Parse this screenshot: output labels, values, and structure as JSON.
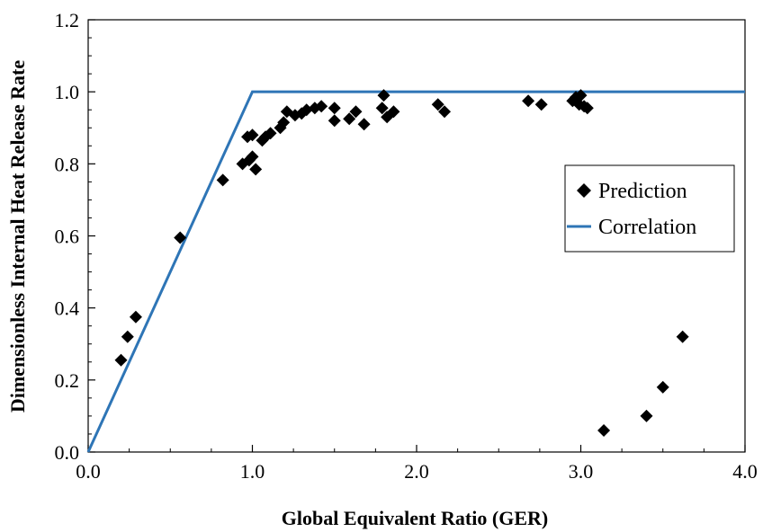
{
  "chart_data": {
    "type": "scatter",
    "title": "",
    "xlabel": "Global Equivalent Ratio (GER)",
    "ylabel": "Dimensionless Internal Heat Release Rate",
    "xlim": [
      0.0,
      4.0
    ],
    "ylim": [
      0.0,
      1.2
    ],
    "x_ticks": [
      "0.0",
      "1.0",
      "2.0",
      "3.0",
      "4.0"
    ],
    "y_ticks": [
      "0.0",
      "0.2",
      "0.4",
      "0.6",
      "0.8",
      "1.0",
      "1.2"
    ],
    "grid": false,
    "legend": {
      "position": "right",
      "entries": [
        "Prediction",
        "Correlation"
      ]
    },
    "colors": {
      "prediction": "#000000",
      "correlation": "#2e75b6"
    },
    "series": [
      {
        "name": "Prediction",
        "type": "scatter",
        "marker": "diamond",
        "x": [
          0.2,
          0.24,
          0.29,
          0.56,
          0.82,
          0.94,
          0.97,
          0.98,
          1.0,
          1.0,
          1.02,
          1.06,
          1.08,
          1.11,
          1.17,
          1.19,
          1.21,
          1.26,
          1.3,
          1.33,
          1.38,
          1.42,
          1.5,
          1.5,
          1.59,
          1.63,
          1.68,
          1.79,
          1.8,
          1.82,
          1.86,
          2.13,
          2.17,
          2.68,
          2.76,
          2.95,
          2.97,
          2.99,
          3.0,
          3.02,
          3.04,
          3.14,
          3.4,
          3.5,
          3.62
        ],
        "y": [
          0.255,
          0.32,
          0.375,
          0.595,
          0.755,
          0.8,
          0.875,
          0.81,
          0.88,
          0.82,
          0.785,
          0.865,
          0.875,
          0.885,
          0.9,
          0.915,
          0.945,
          0.935,
          0.94,
          0.95,
          0.955,
          0.96,
          0.92,
          0.955,
          0.925,
          0.945,
          0.91,
          0.955,
          0.99,
          0.93,
          0.945,
          0.965,
          0.945,
          0.975,
          0.965,
          0.975,
          0.985,
          0.965,
          0.99,
          0.96,
          0.955,
          0.06,
          0.1,
          0.18,
          0.32
        ]
      },
      {
        "name": "Correlation",
        "type": "line",
        "x": [
          0.0,
          1.0,
          4.0
        ],
        "y": [
          0.0,
          1.0,
          1.0
        ]
      }
    ]
  }
}
